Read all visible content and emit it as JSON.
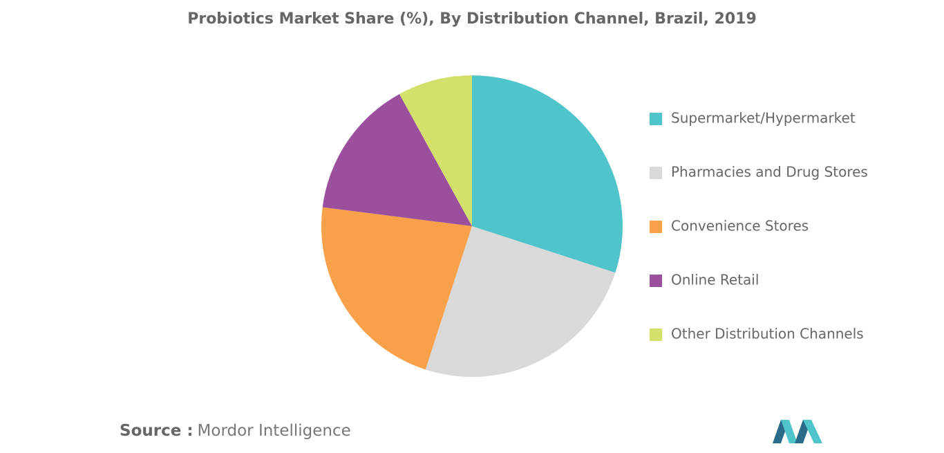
{
  "chart_data": {
    "type": "pie",
    "title": "Probiotics Market Share (%), By Distribution Channel, Brazil, 2019",
    "categories": [
      "Supermarket/Hypermarket",
      "Pharmacies and Drug Stores",
      "Convenience Stores",
      "Online Retail",
      "Other Distribution Channels"
    ],
    "values": [
      30,
      25,
      22,
      15,
      8
    ],
    "colors": [
      "#4fc4cb",
      "#d9d9d9",
      "#f9a04a",
      "#9b509e",
      "#d3e06b"
    ],
    "legend": "right",
    "source_label": "Source :",
    "source": "Mordor Intelligence"
  }
}
